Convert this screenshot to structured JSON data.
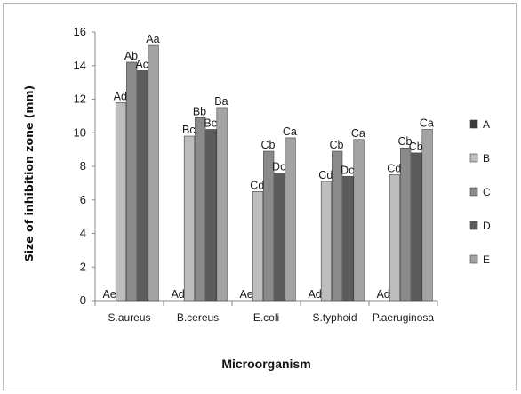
{
  "chart_data": {
    "type": "bar",
    "xlabel": "Microorganism",
    "ylabel": "Size of inhibition zone (mm)",
    "ylim": [
      0,
      16
    ],
    "yticks": [
      "0",
      "2",
      "4",
      "6",
      "8",
      "10",
      "12",
      "14",
      "16"
    ],
    "grid": false,
    "legend_position": "right",
    "categories": [
      "S.aureus",
      "B.cereus",
      "E.coli",
      "S.typhoid",
      "P.aeruginosa"
    ],
    "series": [
      {
        "name": "A",
        "color": "#3a3a3a",
        "values": [
          0,
          0,
          0,
          0,
          0
        ],
        "labels": [
          "Ae",
          "Ad",
          "Ae",
          "Ad",
          "Ad"
        ]
      },
      {
        "name": "B",
        "color": "#bdbdbd",
        "values": [
          11.8,
          9.8,
          6.5,
          7.1,
          7.5
        ],
        "labels": [
          "Ad",
          "Bc",
          "Cd",
          "Cd",
          "Cd"
        ]
      },
      {
        "name": "C",
        "color": "#8a8a8a",
        "values": [
          14.2,
          10.9,
          8.9,
          8.9,
          9.1
        ],
        "labels": [
          "Ab",
          "Bb",
          "Cb",
          "Cb",
          "Cb"
        ]
      },
      {
        "name": "D",
        "color": "#5c5c5c",
        "values": [
          13.7,
          10.2,
          7.6,
          7.4,
          8.8
        ],
        "labels": [
          "Ac",
          "Bc",
          "Dc",
          "Dc",
          "Cb"
        ]
      },
      {
        "name": "E",
        "color": "#a3a3a3",
        "values": [
          15.2,
          11.5,
          9.7,
          9.6,
          10.2
        ],
        "labels": [
          "Aa",
          "Ba",
          "Ca",
          "Ca",
          "Ca"
        ]
      }
    ]
  }
}
